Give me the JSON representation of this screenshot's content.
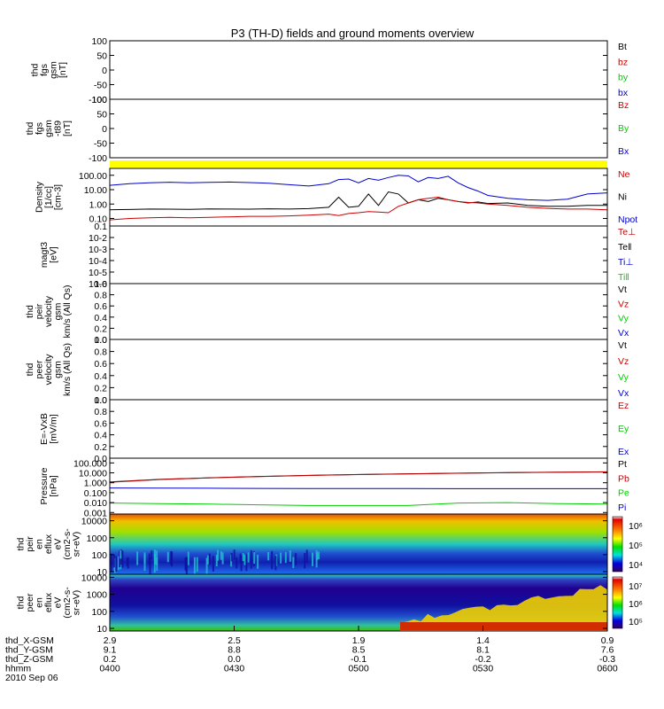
{
  "title": "P3 (TH-D) fields and ground moments overview",
  "chart_data": [
    {
      "type": "line",
      "id": "fgs",
      "ylabel_lines": [
        "thd",
        "fgs",
        "gsm",
        "[nT]"
      ],
      "yticks": [
        "100",
        "50",
        "0",
        "-50",
        "-100"
      ],
      "ylim": [
        -100,
        100
      ],
      "legend": [
        {
          "label": "Bt",
          "color": "#000000"
        },
        {
          "label": "bz",
          "color": "#cc0000"
        },
        {
          "label": "by",
          "color": "#00cc00"
        },
        {
          "label": "bx",
          "color": "#0000cc"
        }
      ]
    },
    {
      "type": "line",
      "id": "fgs-t89",
      "ylabel_lines": [
        "thd",
        "fgs",
        "gsm",
        "-t89",
        "[nT]"
      ],
      "yticks": [
        "100",
        "50",
        "0",
        "-50",
        "-100"
      ],
      "ylim": [
        -100,
        100
      ],
      "legend": [
        {
          "label": "Bz",
          "color": "#cc0000"
        },
        {
          "label": "By",
          "color": "#00cc00"
        },
        {
          "label": "Bx",
          "color": "#0000cc"
        }
      ]
    },
    {
      "type": "bar",
      "id": "flag-bar",
      "color": "#ffff00"
    },
    {
      "type": "line",
      "id": "density",
      "ylabel_lines": [
        "Density",
        "[1/cc]",
        "[cm-3]"
      ],
      "yscale": "log",
      "yticks": [
        "100.00",
        "10.00",
        "1.00",
        "0.10"
      ],
      "ylim": [
        0.03,
        300
      ],
      "legend": [
        {
          "label": "Ne",
          "color": "#cc0000"
        },
        {
          "label": "Ni",
          "color": "#000000"
        },
        {
          "label": "Npot",
          "color": "#0000cc"
        }
      ],
      "x": [
        0,
        0.04,
        0.08,
        0.12,
        0.16,
        0.2,
        0.24,
        0.28,
        0.32,
        0.36,
        0.4,
        0.44,
        0.46,
        0.48,
        0.5,
        0.52,
        0.54,
        0.56,
        0.58,
        0.6,
        0.62,
        0.64,
        0.66,
        0.68,
        0.7,
        0.72,
        0.74,
        0.76,
        0.8,
        0.84,
        0.88,
        0.92,
        0.96,
        1.0
      ],
      "series": [
        {
          "name": "Npot",
          "color": "#0000cc",
          "values": [
            20,
            26,
            30,
            33,
            30,
            32,
            34,
            31,
            28,
            22,
            18,
            26,
            50,
            55,
            30,
            60,
            45,
            70,
            100,
            90,
            35,
            70,
            60,
            85,
            30,
            14,
            8,
            4,
            2.5,
            2,
            1.8,
            2.2,
            5,
            6
          ]
        },
        {
          "name": "Ni",
          "color": "#000000",
          "values": [
            0.4,
            0.42,
            0.45,
            0.44,
            0.43,
            0.46,
            0.45,
            0.44,
            0.47,
            0.45,
            0.48,
            0.6,
            3,
            0.6,
            0.7,
            5,
            0.8,
            7,
            5,
            1.2,
            2,
            1.5,
            2.5,
            2,
            1.5,
            1.2,
            1.4,
            1.1,
            1.2,
            0.8,
            0.7,
            0.7,
            0.8,
            0.8
          ]
        },
        {
          "name": "Ne",
          "color": "#cc0000",
          "values": [
            0.08,
            0.1,
            0.11,
            0.12,
            0.11,
            0.12,
            0.13,
            0.14,
            0.14,
            0.15,
            0.17,
            0.2,
            0.16,
            0.22,
            0.25,
            0.3,
            0.28,
            0.25,
            0.7,
            1.2,
            2,
            2.5,
            3,
            2,
            1.5,
            1.3,
            1.2,
            1.0,
            0.8,
            0.6,
            0.5,
            0.45,
            0.45,
            0.4
          ]
        }
      ]
    },
    {
      "type": "line",
      "id": "magt3",
      "ylabel_lines": [
        "magt3",
        "[eV]"
      ],
      "yscale": "log",
      "yticks": [
        "0.1",
        "10-2",
        "10-3",
        "10-4",
        "10-5",
        "10-6"
      ],
      "ylim": [
        1e-06,
        0.1
      ],
      "legend": [
        {
          "label": "Te⊥",
          "color": "#cc0000"
        },
        {
          "label": "Te‖",
          "color": "#000000"
        },
        {
          "label": "Ti⊥",
          "color": "#0000cc"
        },
        {
          "label": "Ti‖",
          "color": "#00cc00"
        }
      ]
    },
    {
      "type": "line",
      "id": "peir-velocity",
      "ylabel_lines": [
        "thd",
        "peir",
        "velocity",
        "gsm",
        "km/s (All Qs)"
      ],
      "yticks": [
        "1.0",
        "0.8",
        "0.6",
        "0.4",
        "0.2",
        "0.0"
      ],
      "ylim": [
        0,
        1
      ],
      "legend": [
        {
          "label": "Vt",
          "color": "#000000"
        },
        {
          "label": "Vz",
          "color": "#cc0000"
        },
        {
          "label": "Vy",
          "color": "#00cc00"
        },
        {
          "label": "Vx",
          "color": "#0000cc"
        }
      ]
    },
    {
      "type": "line",
      "id": "peer-velocity",
      "ylabel_lines": [
        "thd",
        "peer",
        "velocity",
        "gsm",
        "km/s (All Qs)"
      ],
      "yticks": [
        "1.0",
        "0.8",
        "0.6",
        "0.4",
        "0.2",
        "0.0"
      ],
      "ylim": [
        0,
        1
      ],
      "legend": [
        {
          "label": "Vt",
          "color": "#000000"
        },
        {
          "label": "Vz",
          "color": "#cc0000"
        },
        {
          "label": "Vy",
          "color": "#00cc00"
        },
        {
          "label": "Vx",
          "color": "#0000cc"
        }
      ]
    },
    {
      "type": "line",
      "id": "efield",
      "ylabel_lines": [
        "E=-VxB",
        "[mV/m]"
      ],
      "yticks": [
        "1.0",
        "0.8",
        "0.6",
        "0.4",
        "0.2",
        "0.0"
      ],
      "ylim": [
        0,
        1
      ],
      "legend": [
        {
          "label": "Ez",
          "color": "#cc0000"
        },
        {
          "label": "Ey",
          "color": "#00cc00"
        },
        {
          "label": "Ex",
          "color": "#0000cc"
        }
      ]
    },
    {
      "type": "line",
      "id": "pressure",
      "ylabel_lines": [
        "Pressure",
        "[nPa]"
      ],
      "yscale": "log",
      "yticks": [
        "100.000",
        "10.000",
        "1.000",
        "0.100",
        "0.010",
        "0.001"
      ],
      "ylim": [
        0.0007,
        300
      ],
      "legend": [
        {
          "label": "Pt",
          "color": "#000000"
        },
        {
          "label": "Pb",
          "color": "#cc0000"
        },
        {
          "label": "Pe",
          "color": "#00cc00"
        },
        {
          "label": "Pi",
          "color": "#0000cc"
        }
      ],
      "x": [
        0,
        0.1,
        0.2,
        0.3,
        0.4,
        0.5,
        0.6,
        0.7,
        0.8,
        0.9,
        1.0
      ],
      "series": [
        {
          "name": "Pt",
          "color": "#000000",
          "values": [
            1.2,
            2.2,
            3.2,
            4.3,
            5.5,
            6.8,
            8.0,
            9.2,
            10.4,
            11.5,
            12.5
          ]
        },
        {
          "name": "Pb",
          "color": "#cc0000",
          "values": [
            1.1,
            2.1,
            3.1,
            4.2,
            5.4,
            6.7,
            7.9,
            9.1,
            10.3,
            11.4,
            12.4
          ]
        },
        {
          "name": "Pi",
          "color": "#0000cc",
          "values": [
            0.3,
            0.29,
            0.28,
            0.27,
            0.26,
            0.26,
            0.26,
            0.25,
            0.25,
            0.25,
            0.25
          ]
        },
        {
          "name": "Pe",
          "color": "#00cc00",
          "values": [
            0.009,
            0.008,
            0.007,
            0.006,
            0.005,
            0.005,
            0.005,
            0.009,
            0.01,
            0.008,
            0.007
          ]
        }
      ]
    },
    {
      "type": "heatmap",
      "id": "peir-spectrogram",
      "ylabel_lines": [
        "thd",
        "peir",
        "en",
        "eflux",
        "eV",
        "(cm2-s-",
        "sr-eV)"
      ],
      "yscale": "log",
      "yticks": [
        "10000",
        "1000",
        "100",
        "10"
      ],
      "ylim": [
        7,
        25000
      ],
      "colorbar_ticks": [
        "10⁶",
        "10⁵",
        "10⁴"
      ]
    },
    {
      "type": "heatmap",
      "id": "peer-spectrogram",
      "ylabel_lines": [
        "thd",
        "peer",
        "en",
        "eflux",
        "eV",
        "(cm2-s-",
        "sr-eV)"
      ],
      "yscale": "log",
      "yticks": [
        "10000",
        "1000",
        "100",
        "10"
      ],
      "ylim": [
        7,
        15000
      ],
      "colorbar_ticks": [
        "10⁷",
        "10⁶",
        "10⁵"
      ]
    }
  ],
  "footer": {
    "rows": [
      {
        "label": "thd_X-GSM",
        "values": [
          "2.9",
          "2.5",
          "1.9",
          "1.4",
          "0.9"
        ]
      },
      {
        "label": "thd_Y-GSM",
        "values": [
          "9.1",
          "8.8",
          "8.5",
          "8.1",
          "7.6"
        ]
      },
      {
        "label": "thd_Z-GSM",
        "values": [
          "0.2",
          "0.0",
          "-0.1",
          "-0.2",
          "-0.3"
        ]
      },
      {
        "label": "hhmm",
        "values": [
          "0400",
          "0430",
          "0500",
          "0530",
          "0600"
        ]
      }
    ],
    "date": "2010 Sep 06"
  }
}
